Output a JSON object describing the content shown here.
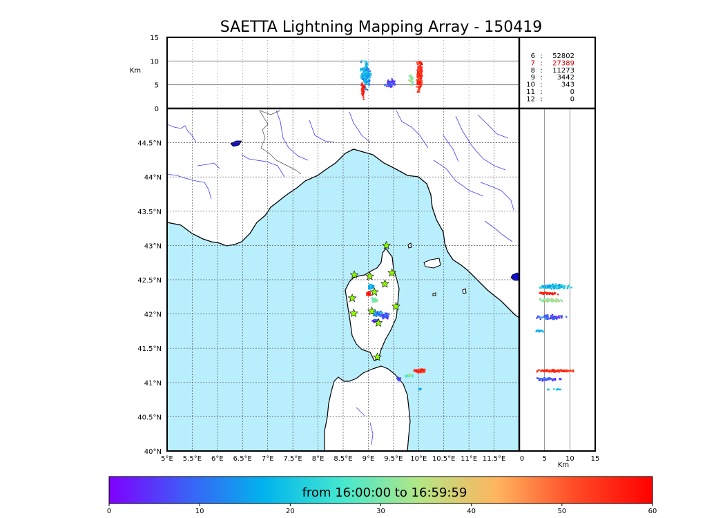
{
  "chart_data": {
    "type": "scatter",
    "title": "SAETTA Lightning Mapping Array - 150419",
    "map": {
      "xlim": [
        5.0,
        12.0
      ],
      "ylim": [
        40.0,
        45.0
      ],
      "x_ticks": [
        {
          "v": 5.0,
          "label": "5°E"
        },
        {
          "v": 5.5,
          "label": "5.5°E"
        },
        {
          "v": 6.0,
          "label": "6°E"
        },
        {
          "v": 6.5,
          "label": "6.5°E"
        },
        {
          "v": 7.0,
          "label": "7°E"
        },
        {
          "v": 7.5,
          "label": "7.5°E"
        },
        {
          "v": 8.0,
          "label": "8°E"
        },
        {
          "v": 8.5,
          "label": "8.5°E"
        },
        {
          "v": 9.0,
          "label": "9°E"
        },
        {
          "v": 9.5,
          "label": "9.5°E"
        },
        {
          "v": 10.0,
          "label": "10°E"
        },
        {
          "v": 10.5,
          "label": "10.5°E"
        },
        {
          "v": 11.0,
          "label": "11°E"
        },
        {
          "v": 11.5,
          "label": "11.5°E"
        }
      ],
      "y_ticks": [
        {
          "v": 40.0,
          "label": "40°N"
        },
        {
          "v": 40.5,
          "label": "40.5°N"
        },
        {
          "v": 41.0,
          "label": "41°N"
        },
        {
          "v": 41.5,
          "label": "41.5°N"
        },
        {
          "v": 42.0,
          "label": "42°N"
        },
        {
          "v": 42.5,
          "label": "42.5°N"
        },
        {
          "v": 43.0,
          "label": "43°N"
        },
        {
          "v": 43.5,
          "label": "43.5°N"
        },
        {
          "v": 44.0,
          "label": "44°N"
        },
        {
          "v": 44.5,
          "label": "44.5°N"
        }
      ],
      "stations": [
        [
          9.36,
          43.0
        ],
        [
          8.72,
          42.57
        ],
        [
          9.03,
          42.55
        ],
        [
          9.47,
          42.6
        ],
        [
          9.33,
          42.44
        ],
        [
          9.12,
          42.32
        ],
        [
          8.68,
          42.23
        ],
        [
          9.55,
          42.11
        ],
        [
          9.07,
          42.04
        ],
        [
          8.71,
          42.01
        ],
        [
          9.2,
          41.87
        ],
        [
          9.18,
          41.37
        ]
      ],
      "clusters": [
        {
          "lon": 9.05,
          "lat": 42.4,
          "dlon": 0.08,
          "dlat": 0.06,
          "n": 60,
          "t": [
            12,
            24
          ],
          "c": 0.0
        },
        {
          "lon": 9.0,
          "lat": 42.3,
          "dlon": 0.06,
          "dlat": 0.04,
          "n": 25,
          "t": [
            55,
            60
          ],
          "c": 0.0
        },
        {
          "lon": 9.12,
          "lat": 42.2,
          "dlon": 0.07,
          "dlat": 0.04,
          "n": 40,
          "t": [
            26,
            36
          ],
          "c": 0.0
        },
        {
          "lon": 9.2,
          "lat": 42.0,
          "dlon": 0.12,
          "dlat": 0.05,
          "n": 45,
          "t": [
            8,
            20
          ],
          "c": 0.0
        },
        {
          "lon": 9.35,
          "lat": 41.97,
          "dlon": 0.1,
          "dlat": 0.05,
          "n": 40,
          "t": [
            3,
            12
          ],
          "c": 0.0
        },
        {
          "lon": 9.15,
          "lat": 41.9,
          "dlon": 0.1,
          "dlat": 0.03,
          "n": 30,
          "t": [
            0,
            10
          ],
          "c": 0.0
        },
        {
          "lon": 10.02,
          "lat": 41.17,
          "dlon": 0.13,
          "dlat": 0.04,
          "n": 70,
          "t": [
            50,
            60
          ],
          "c": 0.0
        },
        {
          "lon": 9.82,
          "lat": 41.1,
          "dlon": 0.1,
          "dlat": 0.03,
          "n": 25,
          "t": [
            24,
            34
          ],
          "c": 0.0
        },
        {
          "lon": 9.6,
          "lat": 41.05,
          "dlon": 0.06,
          "dlat": 0.03,
          "n": 15,
          "t": [
            2,
            10
          ],
          "c": 0.0
        },
        {
          "lon": 10.03,
          "lat": 40.9,
          "dlon": 0.03,
          "dlat": 0.02,
          "n": 8,
          "t": [
            14,
            20
          ],
          "c": 0.0
        }
      ]
    },
    "top_panel": {
      "ylabel": "Km",
      "ylim": [
        0,
        15
      ],
      "y_ticks": [
        {
          "v": 0,
          "label": "0"
        },
        {
          "v": 5,
          "label": "5"
        },
        {
          "v": 10,
          "label": "10"
        },
        {
          "v": 15,
          "label": "15"
        }
      ],
      "counts": [
        {
          "stations": "6",
          "n": "52802",
          "color": "#000000"
        },
        {
          "stations": "7",
          "n": "27389",
          "color": "#cc0000"
        },
        {
          "stations": "8",
          "n": "11273",
          "color": "#000000"
        },
        {
          "stations": "9",
          "n": "3442",
          "color": "#000000"
        },
        {
          "stations": "10",
          "n": "343",
          "color": "#000000"
        },
        {
          "stations": "11",
          "n": "0",
          "color": "#000000"
        },
        {
          "stations": "12",
          "n": "0",
          "color": "#000000"
        }
      ],
      "clusters": [
        {
          "lon": 8.95,
          "alt": 7.0,
          "dlon": 0.12,
          "dalt": 3.8,
          "n": 180,
          "t": [
            10,
            24
          ],
          "c": 0.0
        },
        {
          "lon": 8.9,
          "alt": 4.0,
          "dlon": 0.05,
          "dalt": 2.5,
          "n": 30,
          "t": [
            55,
            60
          ],
          "c": 0.0
        },
        {
          "lon": 9.45,
          "alt": 5.2,
          "dlon": 0.15,
          "dalt": 1.2,
          "n": 50,
          "t": [
            2,
            10
          ],
          "c": 0.0
        },
        {
          "lon": 9.85,
          "alt": 6.0,
          "dlon": 0.06,
          "dalt": 1.8,
          "n": 30,
          "t": [
            26,
            36
          ],
          "c": 0.0
        },
        {
          "lon": 10.02,
          "alt": 7.0,
          "dlon": 0.08,
          "dalt": 4.5,
          "n": 150,
          "t": [
            50,
            60
          ],
          "c": 0.0
        }
      ]
    },
    "side_panel": {
      "xlabel": "Km",
      "xlim": [
        0,
        15
      ],
      "x_ticks": [
        {
          "v": 0,
          "label": "0"
        },
        {
          "v": 5,
          "label": "5"
        },
        {
          "v": 10,
          "label": "10"
        },
        {
          "v": 15,
          "label": "15"
        }
      ],
      "clusters": [
        {
          "alt": 7.0,
          "lat": 42.4,
          "dalt": 4.0,
          "dlat": 0.04,
          "n": 120,
          "t": [
            12,
            26
          ],
          "c": 0.0
        },
        {
          "alt": 5.5,
          "lat": 42.3,
          "dalt": 3.0,
          "dlat": 0.02,
          "n": 40,
          "t": [
            55,
            60
          ],
          "c": 0.0
        },
        {
          "alt": 6.0,
          "lat": 42.2,
          "dalt": 3.2,
          "dlat": 0.04,
          "n": 50,
          "t": [
            26,
            40
          ],
          "c": 0.0
        },
        {
          "alt": 6.5,
          "lat": 41.95,
          "dalt": 3.5,
          "dlat": 0.05,
          "n": 60,
          "t": [
            2,
            14
          ],
          "c": 0.0
        },
        {
          "alt": 4.0,
          "lat": 41.75,
          "dalt": 1.5,
          "dlat": 0.03,
          "n": 15,
          "t": [
            14,
            22
          ],
          "c": 0.0
        },
        {
          "alt": 7.0,
          "lat": 41.17,
          "dalt": 4.5,
          "dlat": 0.02,
          "n": 140,
          "t": [
            50,
            60
          ],
          "c": 0.0
        },
        {
          "alt": 6.0,
          "lat": 41.05,
          "dalt": 3.5,
          "dlat": 0.03,
          "n": 40,
          "t": [
            2,
            12
          ],
          "c": 0.0
        },
        {
          "alt": 7.0,
          "lat": 40.9,
          "dalt": 2.5,
          "dlat": 0.01,
          "n": 10,
          "t": [
            16,
            22
          ],
          "c": 0.0
        }
      ]
    },
    "colorbar": {
      "label": "from 16:00:00 to 16:59:59",
      "range": [
        0,
        60
      ],
      "ticks": [
        {
          "v": 0,
          "label": "0"
        },
        {
          "v": 10,
          "label": "10"
        },
        {
          "v": 20,
          "label": "20"
        },
        {
          "v": 30,
          "label": "30"
        },
        {
          "v": 40,
          "label": "40"
        },
        {
          "v": 50,
          "label": "50"
        },
        {
          "v": 60,
          "label": "60"
        }
      ],
      "colors": [
        "#7f00ff",
        "#3c5ff7",
        "#00b4ec",
        "#44e8d0",
        "#b4e684",
        "#ffb45f",
        "#ff4a26",
        "#ff0000"
      ]
    },
    "colors": {
      "sea": "#b9eefc",
      "land": "#ffffff",
      "river": "#3a3aff",
      "station_fill": "#8fff00",
      "grid": "#555555",
      "axes": "#000000"
    }
  }
}
